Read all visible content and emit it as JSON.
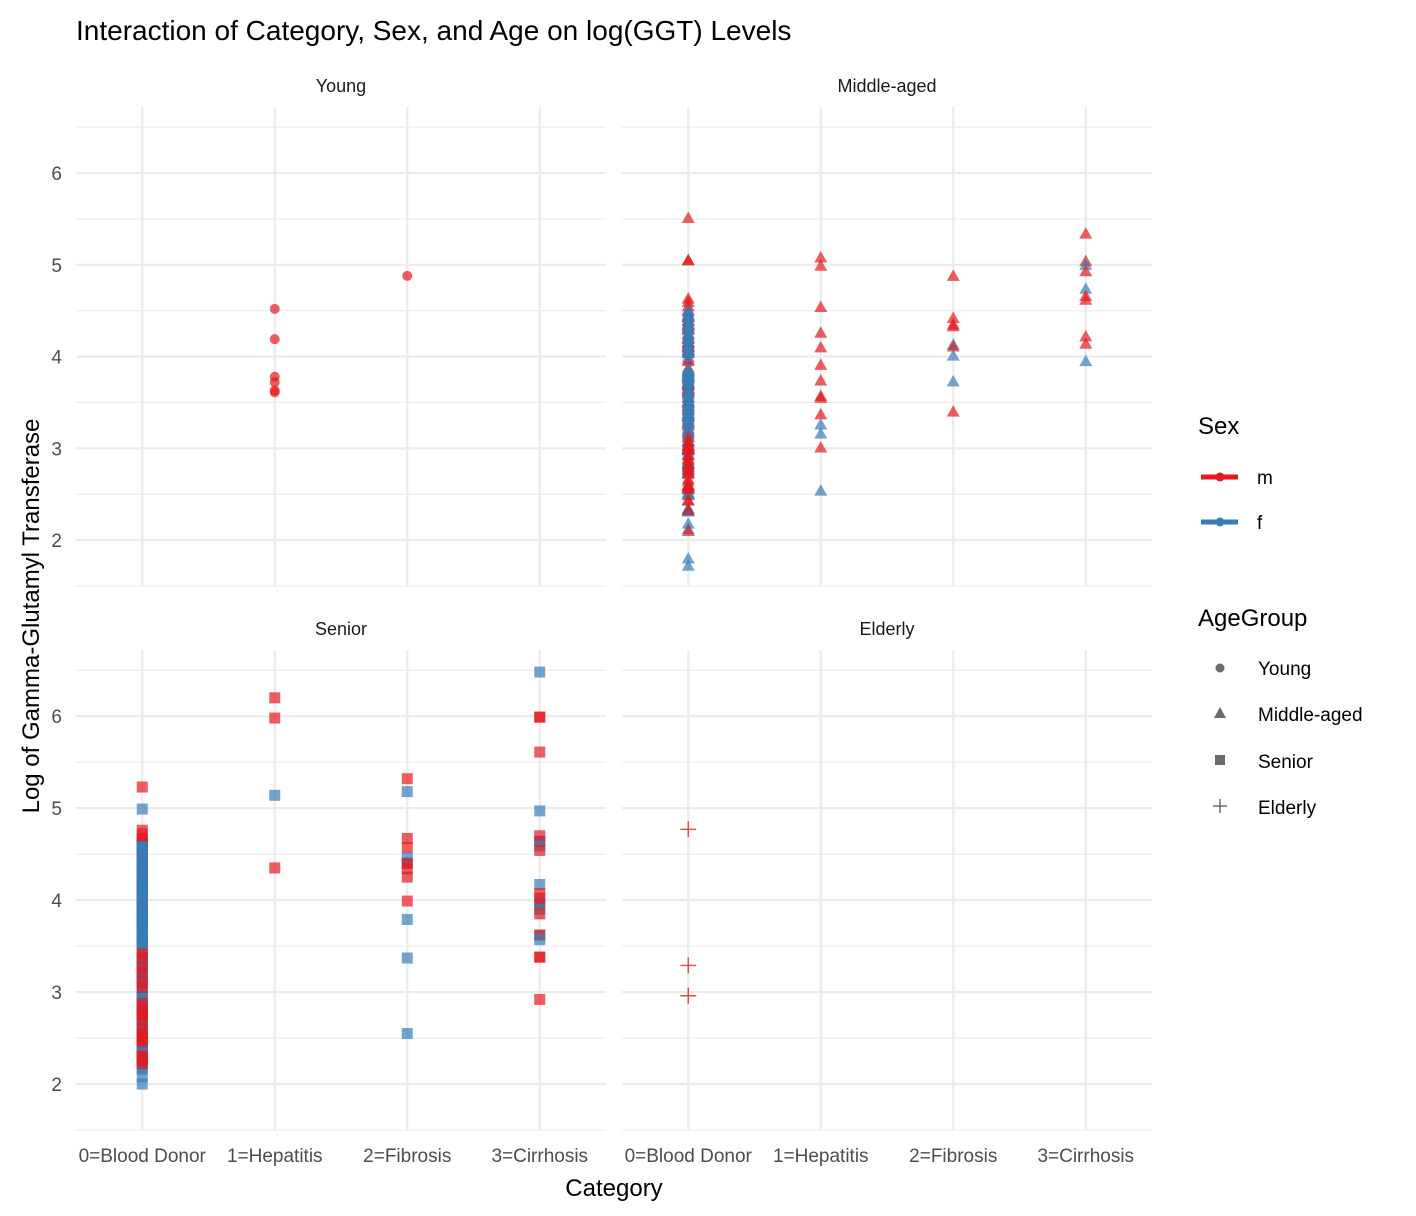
{
  "chart_data": {
    "type": "scatter",
    "title": "Interaction of Category, Sex, and Age on log(GGT) Levels",
    "xlabel": "Category",
    "ylabel": "Log of Gamma-Glutamyl Transferase",
    "categories": [
      "0=Blood Donor",
      "1=Hepatitis",
      "2=Fibrosis",
      "3=Cirrhosis"
    ],
    "category_tick_labels": [
      "0=Blood Donor",
      "1=Hepatitis",
      "2=Fibrosis",
      "3=Cirrhosis"
    ],
    "yticks": [
      2,
      3,
      4,
      5,
      6
    ],
    "ylim": [
      1.5,
      6.72
    ],
    "grid": true,
    "legend_placement": "right",
    "colors": {
      "m": "#E41A1C",
      "f": "#377EB8"
    },
    "legend": {
      "sex": {
        "title": "Sex",
        "items": [
          {
            "key": "m",
            "label": "m"
          },
          {
            "key": "f",
            "label": "f"
          }
        ]
      },
      "age": {
        "title": "AgeGroup",
        "items": [
          {
            "key": "Young",
            "label": "Young",
            "shape": "circle"
          },
          {
            "key": "Middle-aged",
            "label": "Middle-aged",
            "shape": "triangle"
          },
          {
            "key": "Senior",
            "label": "Senior",
            "shape": "square"
          },
          {
            "key": "Elderly",
            "label": "Elderly",
            "shape": "plus"
          }
        ]
      }
    },
    "panels": [
      {
        "label": "Young",
        "shape": "circle",
        "points": [
          {
            "cat": 1,
            "sex": "m",
            "y": 4.52
          },
          {
            "cat": 1,
            "sex": "m",
            "y": 4.19
          },
          {
            "cat": 1,
            "sex": "m",
            "y": 3.78
          },
          {
            "cat": 1,
            "sex": "m",
            "y": 3.72
          },
          {
            "cat": 1,
            "sex": "m",
            "y": 3.63
          },
          {
            "cat": 1,
            "sex": "m",
            "y": 3.61
          },
          {
            "cat": 2,
            "sex": "m",
            "y": 4.88
          }
        ],
        "dense": []
      },
      {
        "label": "Middle-aged",
        "shape": "triangle",
        "points": [
          {
            "cat": 0,
            "sex": "m",
            "y": 5.51
          },
          {
            "cat": 0,
            "sex": "m",
            "y": 5.05
          },
          {
            "cat": 0,
            "sex": "m",
            "y": 5.05
          },
          {
            "cat": 0,
            "sex": "f",
            "y": 2.12
          },
          {
            "cat": 0,
            "sex": "f",
            "y": 2.18
          },
          {
            "cat": 0,
            "sex": "m",
            "y": 2.1
          },
          {
            "cat": 0,
            "sex": "f",
            "y": 1.8
          },
          {
            "cat": 0,
            "sex": "f",
            "y": 1.72
          },
          {
            "cat": 1,
            "sex": "m",
            "y": 5.08
          },
          {
            "cat": 1,
            "sex": "m",
            "y": 4.99
          },
          {
            "cat": 1,
            "sex": "m",
            "y": 4.54
          },
          {
            "cat": 1,
            "sex": "m",
            "y": 4.26
          },
          {
            "cat": 1,
            "sex": "m",
            "y": 4.1
          },
          {
            "cat": 1,
            "sex": "m",
            "y": 3.91
          },
          {
            "cat": 1,
            "sex": "m",
            "y": 3.74
          },
          {
            "cat": 1,
            "sex": "m",
            "y": 3.57
          },
          {
            "cat": 1,
            "sex": "m",
            "y": 3.55
          },
          {
            "cat": 1,
            "sex": "m",
            "y": 3.37
          },
          {
            "cat": 1,
            "sex": "f",
            "y": 3.26
          },
          {
            "cat": 1,
            "sex": "f",
            "y": 3.16
          },
          {
            "cat": 1,
            "sex": "m",
            "y": 3.01
          },
          {
            "cat": 1,
            "sex": "f",
            "y": 2.54
          },
          {
            "cat": 2,
            "sex": "m",
            "y": 4.88
          },
          {
            "cat": 2,
            "sex": "m",
            "y": 4.42
          },
          {
            "cat": 2,
            "sex": "m",
            "y": 4.35
          },
          {
            "cat": 2,
            "sex": "m",
            "y": 4.33
          },
          {
            "cat": 2,
            "sex": "f",
            "y": 4.13
          },
          {
            "cat": 2,
            "sex": "m",
            "y": 4.11
          },
          {
            "cat": 2,
            "sex": "f",
            "y": 4.01
          },
          {
            "cat": 2,
            "sex": "f",
            "y": 3.73
          },
          {
            "cat": 2,
            "sex": "m",
            "y": 3.4
          },
          {
            "cat": 3,
            "sex": "m",
            "y": 5.34
          },
          {
            "cat": 3,
            "sex": "m",
            "y": 5.04
          },
          {
            "cat": 3,
            "sex": "f",
            "y": 5.0
          },
          {
            "cat": 3,
            "sex": "m",
            "y": 4.93
          },
          {
            "cat": 3,
            "sex": "f",
            "y": 4.74
          },
          {
            "cat": 3,
            "sex": "m",
            "y": 4.66
          },
          {
            "cat": 3,
            "sex": "m",
            "y": 4.62
          },
          {
            "cat": 3,
            "sex": "m",
            "y": 4.22
          },
          {
            "cat": 3,
            "sex": "m",
            "y": 4.14
          },
          {
            "cat": 3,
            "sex": "f",
            "y": 3.95
          }
        ],
        "dense": [
          {
            "cat": 0,
            "sex": "m",
            "ymin": 3.0,
            "ymax": 4.64,
            "n": 70
          },
          {
            "cat": 0,
            "sex": "f",
            "ymin": 2.3,
            "ymax": 4.5,
            "n": 110
          },
          {
            "cat": 0,
            "sex": "m",
            "ymin": 2.3,
            "ymax": 3.3,
            "n": 25
          }
        ]
      },
      {
        "label": "Senior",
        "shape": "square",
        "points": [
          {
            "cat": 0,
            "sex": "m",
            "y": 5.23
          },
          {
            "cat": 0,
            "sex": "f",
            "y": 4.99
          },
          {
            "cat": 0,
            "sex": "m",
            "y": 4.76
          },
          {
            "cat": 0,
            "sex": "m",
            "y": 4.72
          },
          {
            "cat": 0,
            "sex": "f",
            "y": 2.0
          },
          {
            "cat": 0,
            "sex": "f",
            "y": 2.08
          },
          {
            "cat": 1,
            "sex": "m",
            "y": 6.2
          },
          {
            "cat": 1,
            "sex": "m",
            "y": 5.98
          },
          {
            "cat": 1,
            "sex": "f",
            "y": 5.14
          },
          {
            "cat": 1,
            "sex": "m",
            "y": 4.35
          },
          {
            "cat": 2,
            "sex": "m",
            "y": 5.32
          },
          {
            "cat": 2,
            "sex": "f",
            "y": 5.18
          },
          {
            "cat": 2,
            "sex": "m",
            "y": 4.67
          },
          {
            "cat": 2,
            "sex": "m",
            "y": 4.57
          },
          {
            "cat": 2,
            "sex": "f",
            "y": 4.46
          },
          {
            "cat": 2,
            "sex": "f",
            "y": 4.4
          },
          {
            "cat": 2,
            "sex": "m",
            "y": 4.4
          },
          {
            "cat": 2,
            "sex": "m",
            "y": 4.34
          },
          {
            "cat": 2,
            "sex": "m",
            "y": 4.25
          },
          {
            "cat": 2,
            "sex": "m",
            "y": 3.99
          },
          {
            "cat": 2,
            "sex": "f",
            "y": 3.79
          },
          {
            "cat": 2,
            "sex": "f",
            "y": 3.37
          },
          {
            "cat": 2,
            "sex": "f",
            "y": 2.55
          },
          {
            "cat": 3,
            "sex": "f",
            "y": 6.48
          },
          {
            "cat": 3,
            "sex": "m",
            "y": 5.99
          },
          {
            "cat": 3,
            "sex": "m",
            "y": 5.99
          },
          {
            "cat": 3,
            "sex": "m",
            "y": 5.61
          },
          {
            "cat": 3,
            "sex": "f",
            "y": 4.97
          },
          {
            "cat": 3,
            "sex": "m",
            "y": 4.7
          },
          {
            "cat": 3,
            "sex": "f",
            "y": 4.64
          },
          {
            "cat": 3,
            "sex": "m",
            "y": 4.64
          },
          {
            "cat": 3,
            "sex": "f",
            "y": 4.59
          },
          {
            "cat": 3,
            "sex": "m",
            "y": 4.54
          },
          {
            "cat": 3,
            "sex": "f",
            "y": 4.17
          },
          {
            "cat": 3,
            "sex": "m",
            "y": 4.07
          },
          {
            "cat": 3,
            "sex": "m",
            "y": 4.02
          },
          {
            "cat": 3,
            "sex": "f",
            "y": 3.96
          },
          {
            "cat": 3,
            "sex": "m",
            "y": 3.96
          },
          {
            "cat": 3,
            "sex": "f",
            "y": 3.9
          },
          {
            "cat": 3,
            "sex": "m",
            "y": 3.85
          },
          {
            "cat": 3,
            "sex": "f",
            "y": 3.62
          },
          {
            "cat": 3,
            "sex": "m",
            "y": 3.62
          },
          {
            "cat": 3,
            "sex": "f",
            "y": 3.57
          },
          {
            "cat": 3,
            "sex": "m",
            "y": 3.38
          },
          {
            "cat": 3,
            "sex": "m",
            "y": 3.38
          },
          {
            "cat": 3,
            "sex": "m",
            "y": 2.92
          }
        ],
        "dense": [
          {
            "cat": 0,
            "sex": "m",
            "ymin": 3.5,
            "ymax": 4.68,
            "n": 45
          },
          {
            "cat": 0,
            "sex": "f",
            "ymin": 2.15,
            "ymax": 4.6,
            "n": 130
          },
          {
            "cat": 0,
            "sex": "m",
            "ymin": 2.2,
            "ymax": 3.5,
            "n": 20
          }
        ]
      },
      {
        "label": "Elderly",
        "shape": "plus",
        "points": [
          {
            "cat": 0,
            "sex": "m",
            "y": 4.77
          },
          {
            "cat": 0,
            "sex": "m",
            "y": 3.29
          },
          {
            "cat": 0,
            "sex": "m",
            "y": 2.96
          }
        ],
        "dense": []
      }
    ]
  }
}
